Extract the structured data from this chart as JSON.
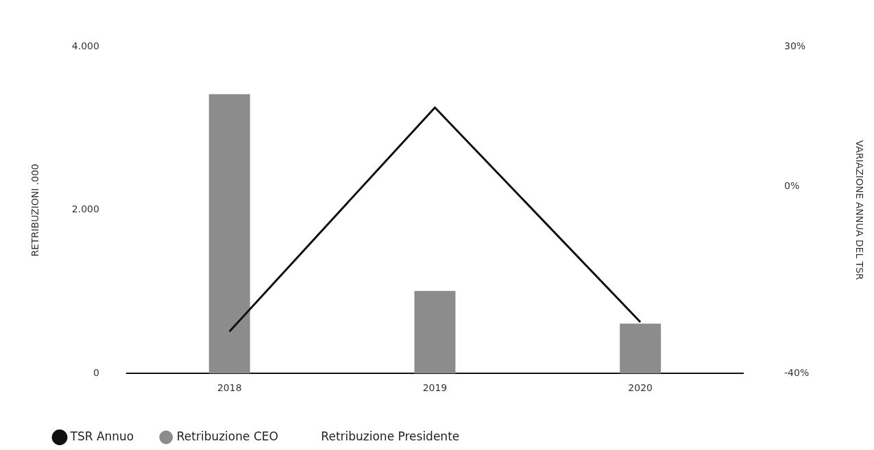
{
  "chart_data": {
    "type": "bar",
    "ylabel": "RETRIBUZIONI .000",
    "y2label": "VARIAZIONE ANNUA DEL TSR",
    "categories": [
      "2018",
      "2019",
      "2020"
    ],
    "series": [
      {
        "name": "TSR Annuo",
        "type": "line",
        "axis": "y2",
        "color": "#111111",
        "values": [
          -31,
          17,
          -29
        ]
      },
      {
        "name": "Retribuzione CEO",
        "color": "#8c8c8c",
        "values": [
          3420,
          1010,
          610
        ]
      },
      {
        "name": "Retribuzione Presidente",
        "type": "bar",
        "values": [
          null,
          null,
          null
        ]
      }
    ],
    "ylim": [
      0,
      4000
    ],
    "yticks": [
      0,
      {
        "value": 2000,
        "label": "2.000"
      },
      {
        "value": 4000,
        "label": "4.000"
      }
    ],
    "y2lim": [
      -40,
      30
    ],
    "y2ticks": [
      {
        "value": -40,
        "label": "-40%"
      },
      {
        "value": 0,
        "label": "0%"
      },
      {
        "value": 30,
        "label": "30%"
      }
    ],
    "grid": false,
    "legend": "bottom left",
    "marker": "none",
    "line_style": "solid"
  }
}
